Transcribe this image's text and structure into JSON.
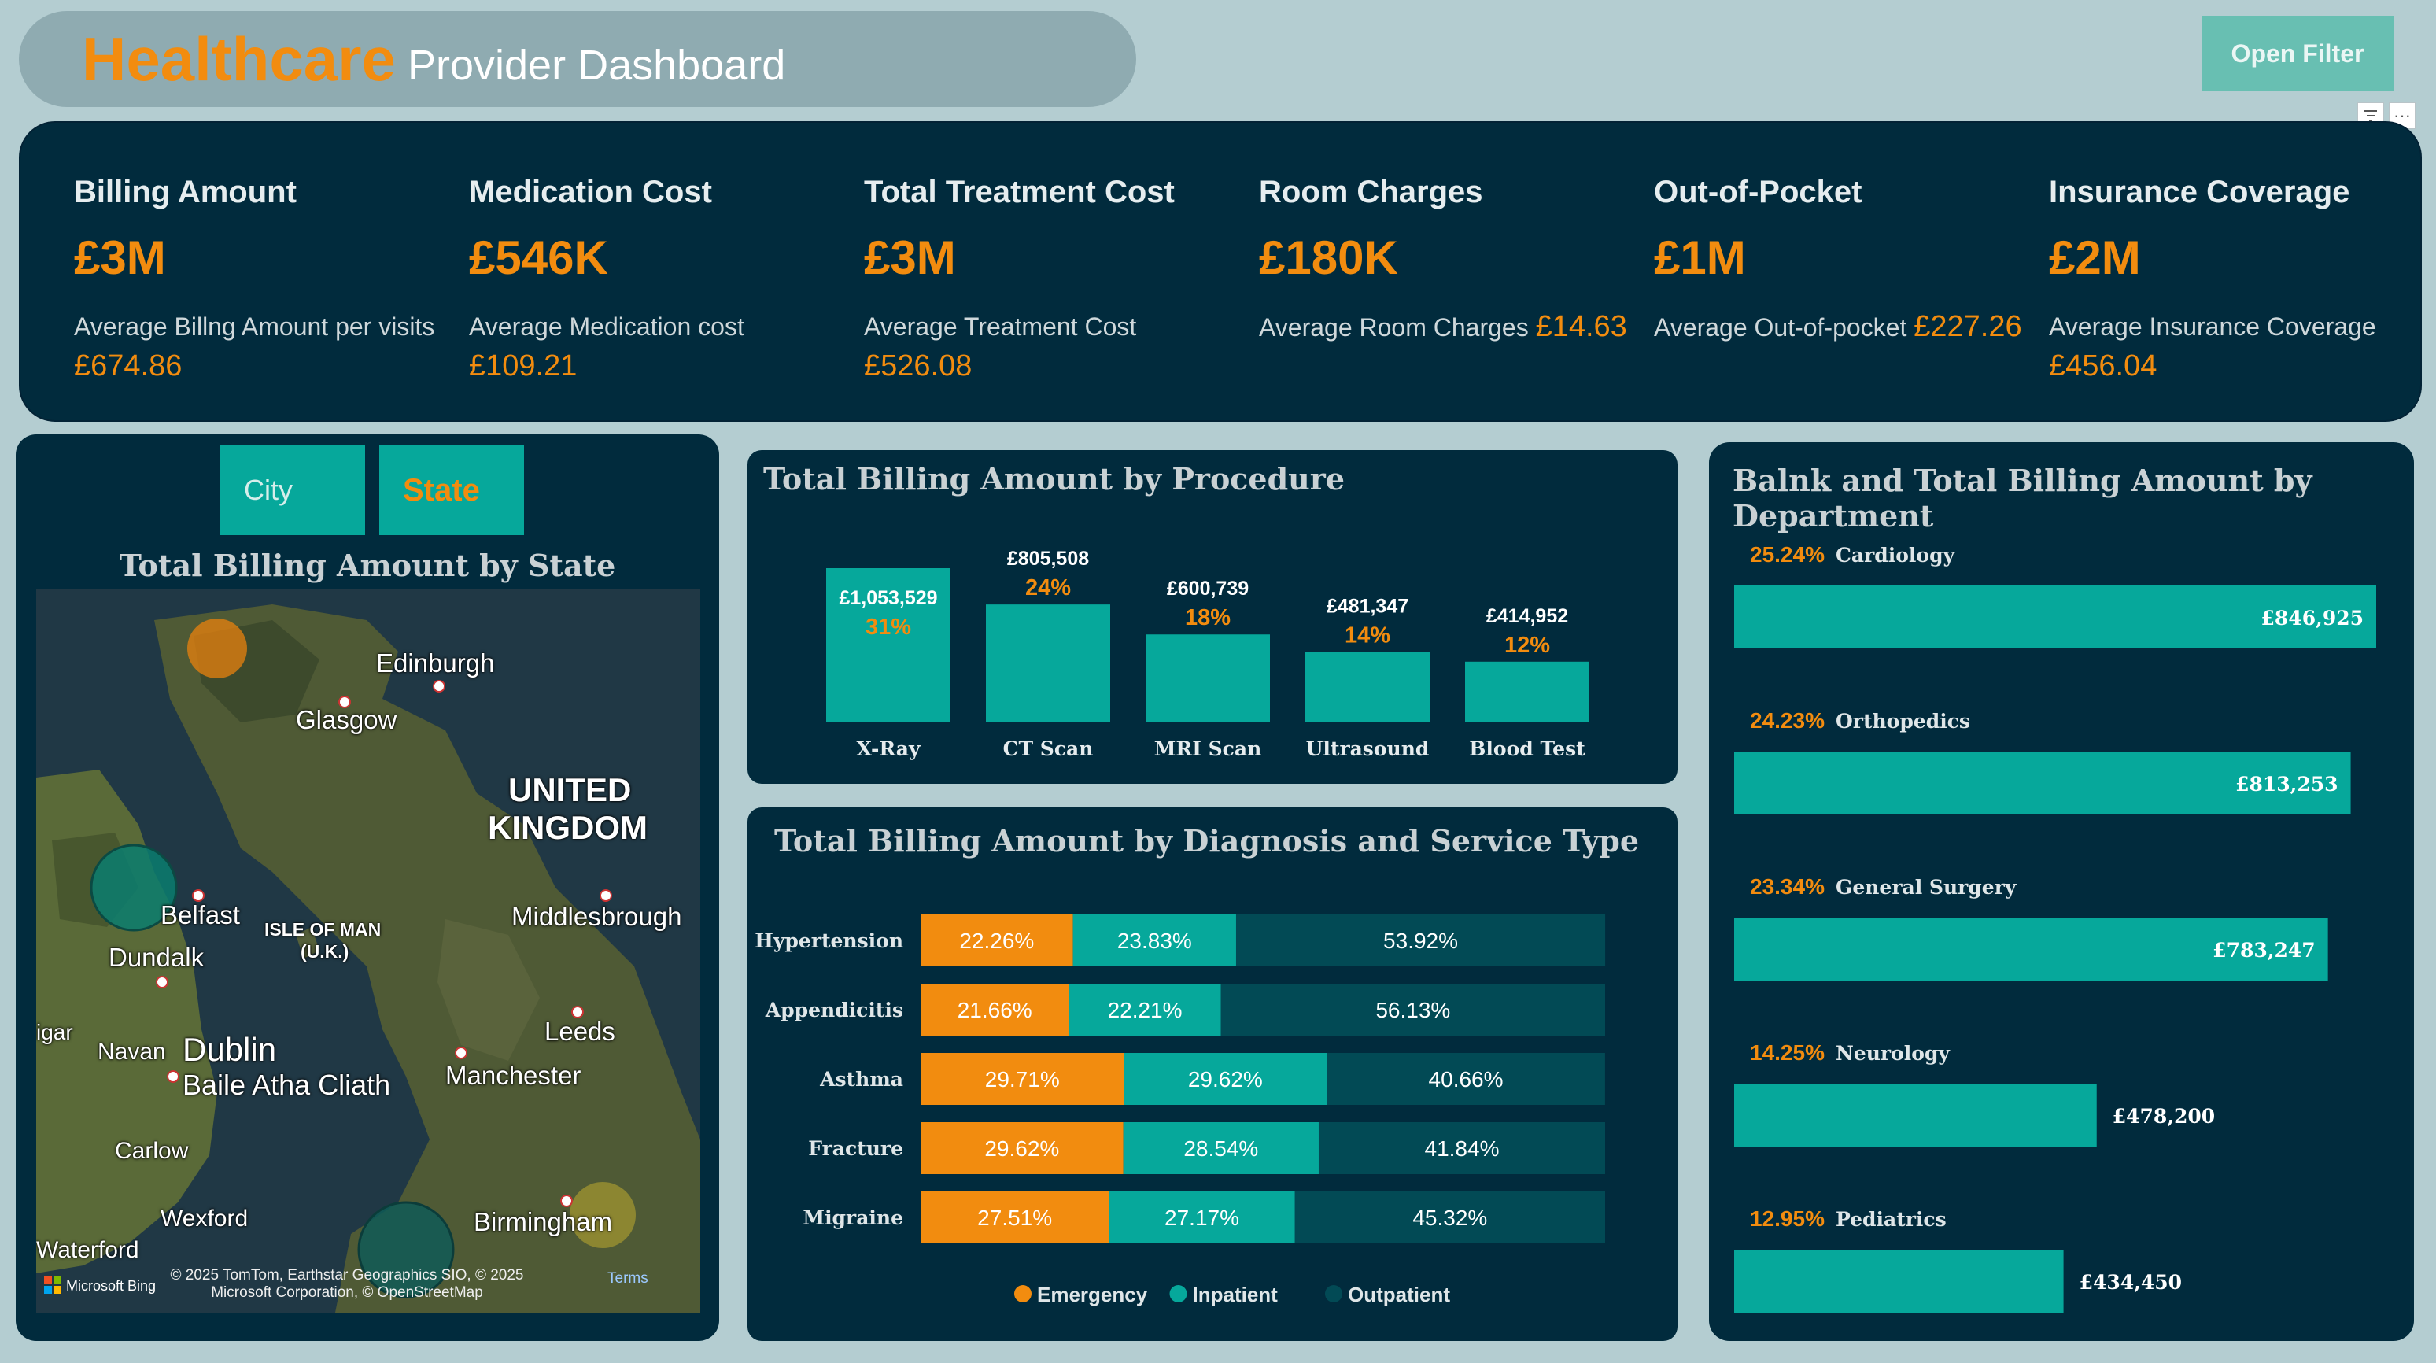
{
  "header": {
    "title_main": "Healthcare",
    "title_sub": "Provider Dashboard"
  },
  "open_filter_label": "Open Filter",
  "kpis": [
    {
      "title": "Billing Amount",
      "value": "£3M",
      "sub_label": "Average Billng Amount per visits",
      "sub_value": "£674.86"
    },
    {
      "title": "Medication Cost",
      "value": "£546K",
      "sub_label": "Average Medication cost",
      "sub_value": "£109.21"
    },
    {
      "title": "Total Treatment Cost",
      "value": "£3M",
      "sub_label": "Average Treatment Cost",
      "sub_value": "£526.08"
    },
    {
      "title": "Room Charges",
      "value": "£180K",
      "sub_label": "Average Room Charges",
      "sub_value": "£14.63"
    },
    {
      "title": "Out-of-Pocket",
      "value": "£1M",
      "sub_label": "Average Out-of-pocket",
      "sub_value": "£227.26"
    },
    {
      "title": "Insurance Coverage",
      "value": "£2M",
      "sub_label": "Average Insurance Coverage",
      "sub_value": "£456.04"
    }
  ],
  "map": {
    "tabs": {
      "city": "City",
      "state": "State"
    },
    "title": "Total Billing Amount by State",
    "labels": [
      "Edinburgh",
      "Glasgow",
      "UNITED",
      "KINGDOM",
      "Belfast",
      "ISLE OF MAN",
      "(U.K.)",
      "Dundalk",
      "Middlesbrough",
      "Leeds",
      "Navan",
      "Dublin",
      "Baile Atha Cliath",
      "Manchester",
      "Carlow",
      "Wexford",
      "Birmingham",
      "Waterford",
      "igar"
    ],
    "attribution": "© 2025 TomTom, Earthstar Geographics SIO, © 2025 Microsoft Corporation, © OpenStreetMap",
    "terms": "Terms",
    "bing": "Microsoft Bing"
  },
  "chart_data": [
    {
      "type": "bar",
      "title": "Total Billing Amount by Procedure",
      "categories": [
        "X-Ray",
        "CT Scan",
        "MRI Scan",
        "Ultrasound",
        "Blood Test"
      ],
      "values": [
        1053529,
        805508,
        600739,
        481347,
        414952
      ],
      "value_labels": [
        "£1,053,529",
        "£805,508",
        "£600,739",
        "£481,347",
        "£414,952"
      ],
      "percent_labels": [
        "31%",
        "24%",
        "18%",
        "14%",
        "12%"
      ],
      "colors": {
        "bar": "#06a89b",
        "percent": "#f28c0f"
      }
    },
    {
      "type": "bar",
      "orientation": "horizontal-stacked-100",
      "title": "Total Billing Amount by Diagnosis and Service Type",
      "categories": [
        "Hypertension",
        "Appendicitis",
        "Asthma",
        "Fracture",
        "Migraine"
      ],
      "series": [
        {
          "name": "Emergency",
          "color": "#f28c0f",
          "values": [
            22.26,
            21.66,
            29.71,
            29.62,
            27.51
          ],
          "labels": [
            "22.26%",
            "21.66%",
            "29.71%",
            "29.62%",
            "27.51%"
          ]
        },
        {
          "name": "Inpatient",
          "color": "#06a89b",
          "values": [
            23.83,
            22.21,
            29.62,
            28.54,
            27.17
          ],
          "labels": [
            "23.83%",
            "22.21%",
            "29.62%",
            "28.54%",
            "27.17%"
          ]
        },
        {
          "name": "Outpatient",
          "color": "#024a55",
          "values": [
            53.92,
            56.13,
            40.66,
            41.84,
            45.32
          ],
          "labels": [
            "53.92%",
            "56.13%",
            "40.66%",
            "41.84%",
            "45.32%"
          ]
        }
      ],
      "legend": "bottom-center"
    },
    {
      "type": "bar",
      "orientation": "horizontal",
      "title": "Balnk and Total Billing Amount by Department",
      "categories": [
        "Cardiology",
        "Orthopedics",
        "General Surgery",
        "Neurology",
        "Pediatrics"
      ],
      "values": [
        846925,
        813253,
        783247,
        478200,
        434450
      ],
      "value_labels": [
        "£846,925",
        "£813,253",
        "£783,247",
        "£478,200",
        "£434,450"
      ],
      "percent_labels": [
        "25.24%",
        "24.23%",
        "23.34%",
        "14.25%",
        "12.95%"
      ],
      "colors": {
        "bar": "#06a89b",
        "percent": "#f28c0f"
      }
    }
  ]
}
